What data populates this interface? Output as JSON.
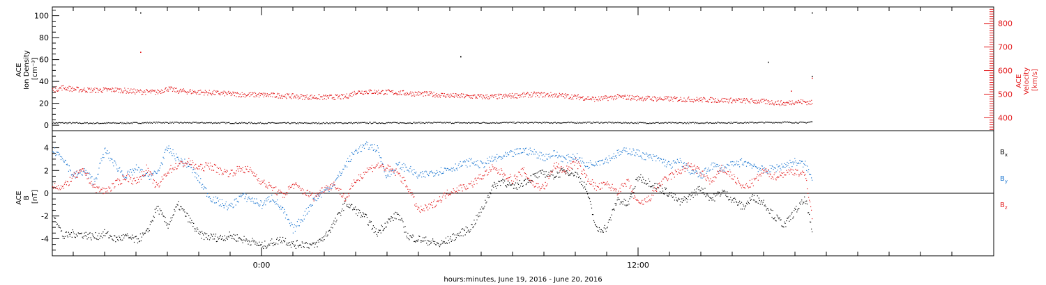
{
  "chart_data": {
    "xlabel": "hours:minutes, June 19, 2016 - June 20, 2016",
    "xlim_hours": [
      -10,
      35
    ],
    "x_ticks": [
      {
        "hour": 0,
        "label": "0:00"
      },
      {
        "hour": 18,
        "label": "12:00"
      }
    ],
    "panels": [
      {
        "type": "scatter",
        "ylabel": [
          "ACE",
          "Ion Density",
          "[cm⁻³]"
        ],
        "ylim": [
          -5,
          108
        ],
        "yticks": [
          0,
          20,
          40,
          60,
          80,
          100
        ],
        "right_axis": {
          "ylabel": [
            "ACE",
            "Velocity",
            "[km/s]"
          ],
          "ylim": [
            345,
            870
          ],
          "yticks": [
            400,
            500,
            600,
            700,
            800
          ],
          "color": "#e31a1c"
        },
        "series": [
          {
            "name": "",
            "axis": "left",
            "color": "#000000",
            "x": [
              -10,
              -8,
              -6,
              -5,
              -4,
              -2,
              0,
              2,
              4,
              6,
              8,
              10,
              12,
              14,
              16,
              18,
              20,
              22,
              24,
              25,
              26,
              26.3
            ],
            "y": [
              2.5,
              2.2,
              2.4,
              2.8,
              2.6,
              2.5,
              2.3,
              2.2,
              2.4,
              2.5,
              2.6,
              2.5,
              2.7,
              2.6,
              2.8,
              2.5,
              2.4,
              2.6,
              2.8,
              3.0,
              2.7,
              3.5
            ]
          },
          {
            "name": "",
            "axis": "right",
            "color": "#e31a1c",
            "x": [
              -10,
              -9.5,
              -9,
              -8,
              -7,
              -6,
              -5,
              -4.5,
              -4,
              -3,
              -2,
              -1,
              0,
              1,
              2,
              3,
              4,
              4.5,
              5,
              6,
              7,
              8,
              9,
              10,
              11,
              12,
              13,
              14,
              15,
              16,
              17,
              18,
              19,
              20,
              21,
              22,
              23,
              24,
              25,
              25.5,
              26,
              26.3
            ],
            "y": [
              520,
              530,
              522,
              518,
              520,
              512,
              510,
              525,
              515,
              510,
              505,
              500,
              498,
              495,
              490,
              488,
              490,
              510,
              512,
              510,
              505,
              502,
              495,
              492,
              490,
              495,
              500,
              498,
              490,
              480,
              490,
              485,
              482,
              480,
              478,
              476,
              474,
              470,
              462,
              470,
              468,
              465
            ]
          }
        ],
        "annotations": {
          "outliers_left": [
            {
              "x": -5.8,
              "y": 103
            },
            {
              "x": 9.5,
              "y": 63
            },
            {
              "x": 24.2,
              "y": 58
            },
            {
              "x": 26.3,
              "y": 103
            },
            {
              "x": 26.3,
              "y": 45
            }
          ],
          "outliers_right": [
            {
              "x": -5.8,
              "y": 680
            },
            {
              "x": 26.3,
              "y": 570
            },
            {
              "x": 25.3,
              "y": 515
            }
          ]
        }
      },
      {
        "type": "scatter",
        "ylabel": [
          "ACE",
          "B",
          "[nT]"
        ],
        "ylim": [
          -5.5,
          5.5
        ],
        "yticks": [
          -4,
          -2,
          0,
          2,
          4
        ],
        "zero_line": true,
        "series": [
          {
            "name": "Bx",
            "color": "#000000",
            "x": [
              -10,
              -9.5,
              -9,
              -8.5,
              -8,
              -7.5,
              -7,
              -6.5,
              -6,
              -5.5,
              -5,
              -4.5,
              -4,
              -3.5,
              -3,
              -2.5,
              -2,
              -1.5,
              -1,
              -0.5,
              0,
              0.5,
              1,
              1.5,
              2,
              2.5,
              3,
              3.5,
              4,
              4.5,
              5,
              5.5,
              6,
              6.5,
              7,
              7.5,
              8,
              8.5,
              9,
              9.5,
              10,
              10.5,
              11,
              11.5,
              12,
              12.5,
              13,
              13.5,
              14,
              14.5,
              15,
              15.5,
              16,
              16.5,
              17,
              17.5,
              18,
              18.5,
              19,
              19.5,
              20,
              20.5,
              21,
              21.5,
              22,
              22.5,
              23,
              23.5,
              24,
              24.5,
              25,
              25.5,
              26,
              26.3
            ],
            "y": [
              -1.5,
              -3.8,
              -3.5,
              -3.6,
              -3.8,
              -3.5,
              -4.0,
              -3.8,
              -4.1,
              -3.5,
              -1.2,
              -2.8,
              -1.0,
              -2.2,
              -3.6,
              -3.8,
              -3.9,
              -3.7,
              -4.0,
              -4.2,
              -4.6,
              -4.3,
              -4.0,
              -4.5,
              -4.4,
              -4.6,
              -3.8,
              -2.5,
              -0.8,
              -1.5,
              -2.2,
              -3.5,
              -2.5,
              -1.8,
              -3.8,
              -4.0,
              -4.2,
              -4.5,
              -4.0,
              -3.5,
              -3.0,
              -1.5,
              0.5,
              1.2,
              0.5,
              1.0,
              1.5,
              1.8,
              1.6,
              2.0,
              1.8,
              0.5,
              -3.2,
              -3.0,
              -0.5,
              -1.0,
              1.5,
              1.0,
              0.5,
              0.0,
              -0.8,
              -0.2,
              0.5,
              -0.5,
              0.2,
              -0.5,
              -1.2,
              -0.3,
              -0.8,
              -2.0,
              -2.8,
              -1.5,
              -0.5,
              -3.5
            ]
          },
          {
            "name": "By",
            "color": "#1f78d1",
            "x": [
              -10,
              -9.5,
              -9,
              -8.5,
              -8,
              -7.5,
              -7,
              -6.5,
              -6,
              -5.5,
              -5,
              -4.5,
              -4,
              -3.5,
              -3,
              -2.5,
              -2,
              -1.5,
              -1,
              -0.5,
              0,
              0.5,
              1,
              1.5,
              2,
              2.5,
              3,
              3.5,
              4,
              4.5,
              5,
              5.5,
              6,
              6.5,
              7,
              7.5,
              8,
              8.5,
              9,
              9.5,
              10,
              10.5,
              11,
              11.5,
              12,
              12.5,
              13,
              13.5,
              14,
              14.5,
              15,
              15.5,
              16,
              16.5,
              17,
              17.5,
              18,
              18.5,
              19,
              19.5,
              20,
              20.5,
              21,
              21.5,
              22,
              22.5,
              23,
              23.5,
              24,
              24.5,
              25,
              25.5,
              26,
              26.3
            ],
            "y": [
              3.8,
              3.2,
              1.5,
              2.0,
              1.0,
              3.8,
              2.5,
              1.5,
              2.2,
              1.5,
              1.8,
              4.0,
              3.0,
              2.5,
              1.2,
              -0.3,
              -0.8,
              -1.2,
              -0.2,
              -0.5,
              -1.0,
              -0.3,
              -1.5,
              -3.2,
              -2.0,
              -0.5,
              0.2,
              1.0,
              2.5,
              3.8,
              4.2,
              4.0,
              1.5,
              2.5,
              2.2,
              1.5,
              1.8,
              2.0,
              2.2,
              2.5,
              2.8,
              2.5,
              3.0,
              3.2,
              3.5,
              3.8,
              3.6,
              3.2,
              3.5,
              3.0,
              3.3,
              2.5,
              2.8,
              3.0,
              3.5,
              3.8,
              3.5,
              3.2,
              3.0,
              2.5,
              2.8,
              2.0,
              1.5,
              2.5,
              2.2,
              2.5,
              2.8,
              2.5,
              2.0,
              2.2,
              2.5,
              2.8,
              2.5,
              1.2
            ]
          },
          {
            "name": "Bz",
            "color": "#e31a1c",
            "x": [
              -10,
              -9.5,
              -9,
              -8.5,
              -8,
              -7.5,
              -7,
              -6.5,
              -6,
              -5.5,
              -5,
              -4.5,
              -4,
              -3.5,
              -3,
              -2.5,
              -2,
              -1.5,
              -1,
              -0.5,
              0,
              0.5,
              1,
              1.5,
              2,
              2.5,
              3,
              3.5,
              4,
              4.5,
              5,
              5.5,
              6,
              6.5,
              7,
              7.5,
              8,
              8.5,
              9,
              9.5,
              10,
              10.5,
              11,
              11.5,
              12,
              12.5,
              13,
              13.5,
              14,
              14.5,
              15,
              15.5,
              16,
              16.5,
              17,
              17.5,
              18,
              18.5,
              19,
              19.5,
              20,
              20.5,
              21,
              21.5,
              22,
              22.5,
              23,
              23.5,
              24,
              24.5,
              25,
              25.5,
              26,
              26.3
            ],
            "y": [
              0.8,
              0.5,
              1.5,
              2.0,
              0.5,
              0.2,
              0.8,
              1.5,
              1.0,
              2.2,
              0.5,
              2.0,
              2.5,
              2.8,
              2.2,
              2.5,
              2.0,
              1.8,
              2.2,
              2.0,
              1.0,
              0.5,
              -0.2,
              0.8,
              0.2,
              -0.3,
              0.5,
              0.8,
              -0.5,
              1.2,
              2.0,
              2.5,
              2.2,
              1.8,
              0.5,
              -1.5,
              -1.2,
              -0.5,
              0.2,
              0.5,
              0.8,
              1.5,
              2.2,
              1.8,
              1.2,
              2.0,
              0.8,
              0.5,
              2.5,
              2.0,
              2.8,
              1.5,
              0.5,
              0.8,
              0.2,
              1.0,
              -1.0,
              -0.5,
              0.8,
              1.5,
              2.0,
              2.5,
              1.8,
              1.0,
              2.2,
              1.5,
              0.5,
              1.0,
              2.0,
              1.5,
              1.8,
              2.0,
              1.5,
              -2.0
            ]
          }
        ]
      }
    ]
  }
}
